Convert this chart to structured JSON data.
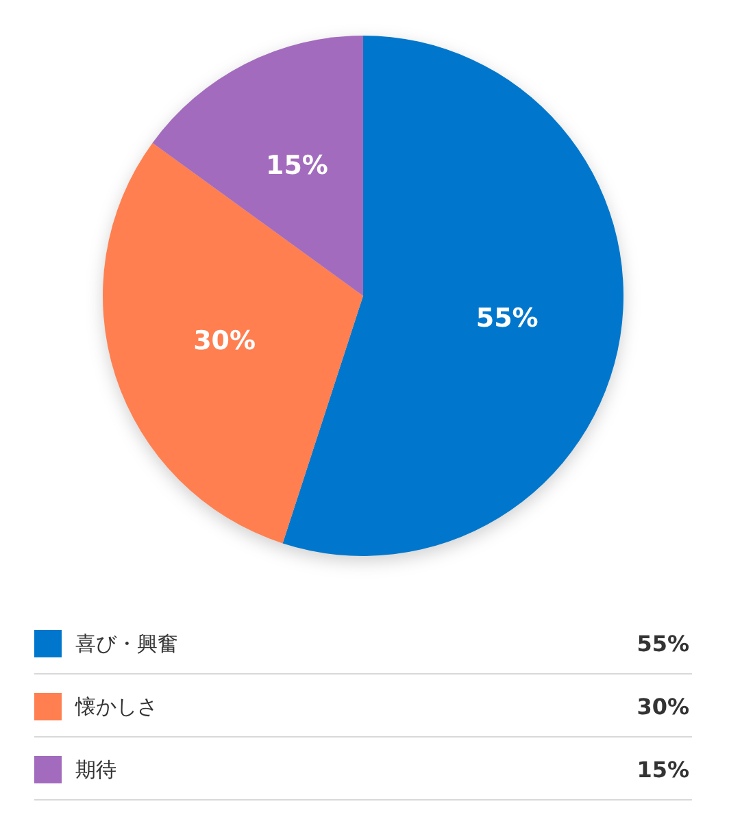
{
  "chart_data": {
    "type": "pie",
    "categories": [
      "喜び・興奮",
      "懐かしさ",
      "期待"
    ],
    "values": [
      55,
      30,
      15
    ],
    "colors": [
      "#0077cc",
      "#ff7f50",
      "#a36bbd"
    ],
    "value_labels": [
      "55%",
      "30%",
      "15%"
    ],
    "legend": "bottom"
  }
}
